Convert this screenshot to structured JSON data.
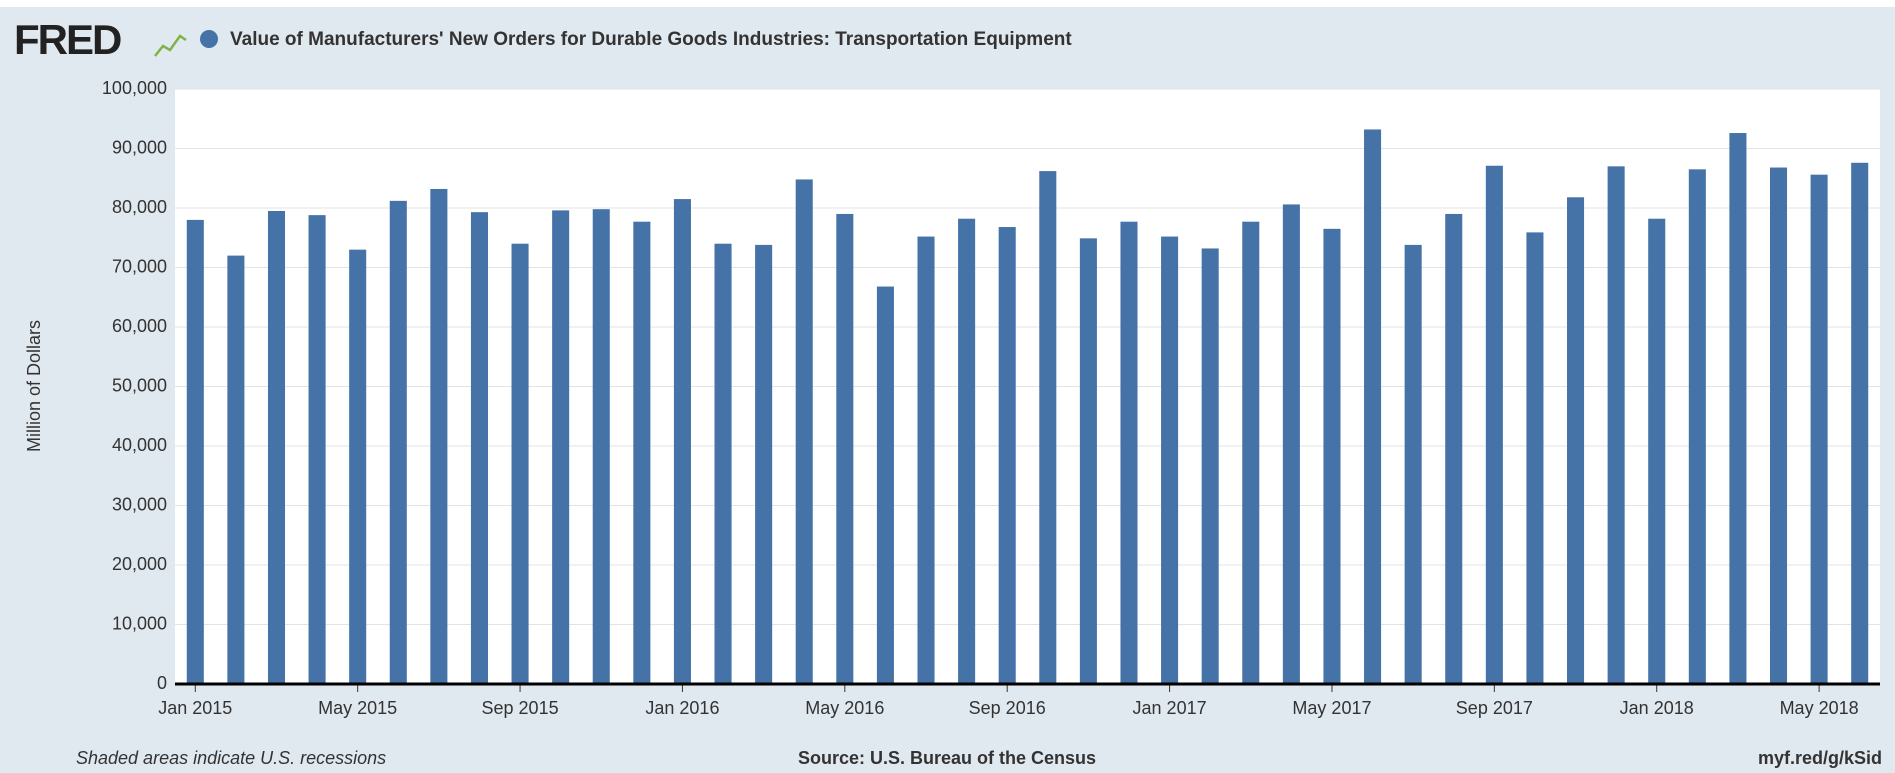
{
  "chart_data": {
    "type": "bar",
    "logo": "FRED",
    "title": "Value of Manufacturers' New Orders for Durable Goods Industries: Transportation Equipment",
    "y_label": "Million of Dollars",
    "footer_left": "Shaded areas indicate U.S. recessions",
    "footer_center": "Source: U.S. Bureau of the Census",
    "footer_right": "myf.red/g/kSid",
    "color": "#4572a7",
    "grid": true,
    "categories": [
      "Jan 2015",
      null,
      null,
      null,
      "May 2015",
      null,
      null,
      null,
      "Sep 2015",
      null,
      null,
      null,
      "Jan 2016",
      null,
      null,
      null,
      "May 2016",
      null,
      null,
      null,
      "Sep 2016",
      null,
      null,
      null,
      "Jan 2017",
      null,
      null,
      null,
      "May 2017",
      null,
      null,
      null,
      "Sep 2017",
      null,
      null,
      null,
      "Jan 2018",
      null,
      null,
      null,
      "May 2018",
      null
    ],
    "values": [
      78000,
      72000,
      79500,
      78800,
      73000,
      81200,
      83200,
      79300,
      74000,
      79600,
      79800,
      77700,
      81500,
      74000,
      73800,
      84800,
      79000,
      66800,
      75200,
      78200,
      76800,
      86200,
      74900,
      77700,
      75200,
      73200,
      77700,
      80600,
      76500,
      93200,
      73800,
      79000,
      87100,
      75900,
      81800,
      87000,
      78200,
      86500,
      92600,
      86800,
      85600,
      87600
    ],
    "ylim": [
      0,
      100000
    ],
    "yticks": [
      {
        "value": 0,
        "label": "0"
      },
      {
        "value": 10000,
        "label": "10,000"
      },
      {
        "value": 20000,
        "label": "20,000"
      },
      {
        "value": 30000,
        "label": "30,000"
      },
      {
        "value": 40000,
        "label": "40,000"
      },
      {
        "value": 50000,
        "label": "50,000"
      },
      {
        "value": 60000,
        "label": "60,000"
      },
      {
        "value": 70000,
        "label": "70,000"
      },
      {
        "value": 80000,
        "label": "80,000"
      },
      {
        "value": 90000,
        "label": "90,000"
      },
      {
        "value": 100000,
        "label": "100,000"
      }
    ]
  }
}
